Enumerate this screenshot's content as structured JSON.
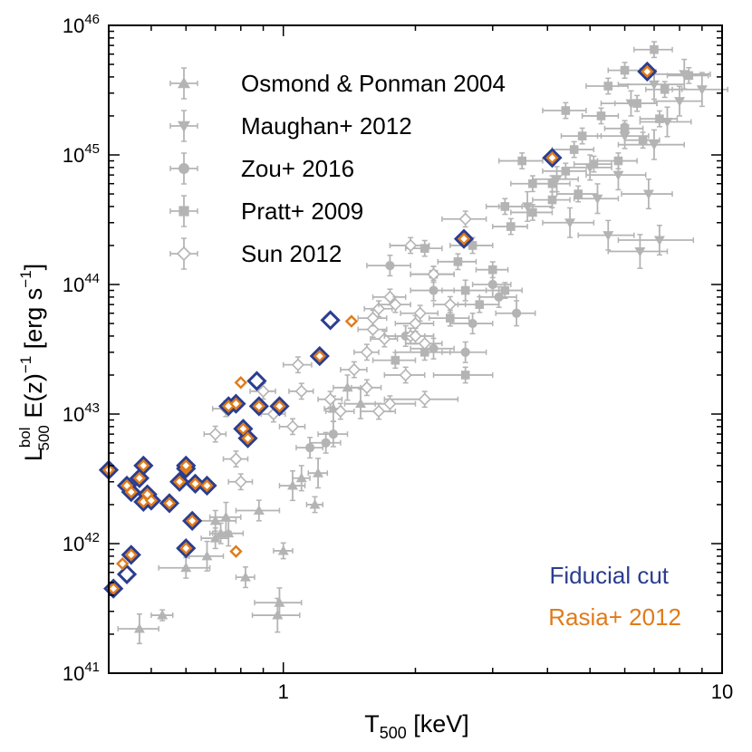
{
  "chart_data": {
    "type": "scatter",
    "xscale": "log",
    "yscale": "log",
    "xlim": [
      0.4,
      10
    ],
    "ylim": [
      1e+41,
      1e+46
    ],
    "xlabel": {
      "main": "T",
      "sub": "500",
      "rest": " [keV]"
    },
    "ylabel": {
      "main": "L",
      "sup": "bol",
      "sub": "500",
      "mid": " E(z)",
      "sup2": "−1",
      "unit": " [erg s",
      "sup3": "−1",
      "close": "]"
    },
    "x_ticks": [
      {
        "value": 1,
        "label": "1"
      },
      {
        "value": 10,
        "label": "10"
      }
    ],
    "y_ticks": [
      {
        "value": 1e+41,
        "base": "10",
        "exp": "41"
      },
      {
        "value": 1e+42,
        "base": "10",
        "exp": "42"
      },
      {
        "value": 1e+43,
        "base": "10",
        "exp": "43"
      },
      {
        "value": 1e+44,
        "base": "10",
        "exp": "44"
      },
      {
        "value": 1e+45,
        "base": "10",
        "exp": "45"
      },
      {
        "value": 1e+46,
        "base": "10",
        "exp": "46"
      }
    ],
    "legend_position": "top-left",
    "colors": {
      "gray": "#b4b4b4",
      "fiducial": "#2a3d8f",
      "rasia": "#e07b1a",
      "axis": "#000000"
    },
    "series": [
      {
        "name": "Osmond & Ponman 2004",
        "marker": "triangle-up",
        "points": [
          [
            0.47,
            2.2e+41,
            0.05,
            1.3
          ],
          [
            0.53,
            2.8e+41,
            0.03,
            1.1
          ],
          [
            0.6,
            6.5e+41,
            0.08,
            1.2
          ],
          [
            0.67,
            8e+41,
            0.06,
            1.3
          ],
          [
            0.7,
            1.1e+42,
            0.05,
            1.2
          ],
          [
            0.72,
            1.2e+42,
            0.04,
            1.2
          ],
          [
            0.75,
            1.2e+42,
            0.06,
            1.25
          ],
          [
            0.7,
            1.5e+42,
            0.08,
            1.2
          ],
          [
            0.74,
            1.6e+42,
            0.06,
            1.3
          ],
          [
            0.88,
            1.8e+42,
            0.1,
            1.2
          ],
          [
            0.82,
            5.5e+41,
            0.04,
            1.2
          ],
          [
            0.98,
            3.5e+41,
            0.12,
            1.3
          ],
          [
            0.97,
            2.8e+41,
            0.12,
            1.35
          ],
          [
            1.0,
            8.8e+41,
            0.05,
            1.15
          ],
          [
            1.18,
            2e+42,
            0.05,
            1.15
          ],
          [
            1.05,
            2.8e+42,
            0.07,
            1.3
          ],
          [
            1.1,
            3.2e+42,
            0.05,
            1.25
          ],
          [
            1.2,
            3.5e+42,
            0.06,
            1.3
          ],
          [
            1.4,
            1.6e+43,
            0.1,
            1.25
          ],
          [
            1.5,
            1.2e+43,
            0.12,
            1.3
          ],
          [
            1.3,
            1.1e+43,
            0.06,
            1.25
          ]
        ]
      },
      {
        "name": "Maughan+ 2012",
        "marker": "triangle-down",
        "points": [
          [
            3.6,
            4e+44,
            0.5,
            1.3
          ],
          [
            4.5,
            3e+44,
            0.6,
            1.3
          ],
          [
            5.5,
            2.4e+44,
            0.8,
            1.3
          ],
          [
            6.5,
            1.8e+44,
            1.0,
            1.35
          ],
          [
            7.2,
            2.2e+44,
            1.4,
            1.3
          ],
          [
            4.2,
            6.5e+44,
            0.5,
            1.25
          ],
          [
            5.0,
            8e+44,
            0.6,
            1.25
          ],
          [
            5.8,
            7e+44,
            0.9,
            1.3
          ],
          [
            6.0,
            1.4e+45,
            0.8,
            1.25
          ],
          [
            7.0,
            1.2e+45,
            1.2,
            1.3
          ],
          [
            7.5,
            1.8e+45,
            1.0,
            1.3
          ],
          [
            6.2,
            2.5e+45,
            0.9,
            1.25
          ],
          [
            7.0,
            3.5e+45,
            1.2,
            1.3
          ],
          [
            8.2,
            4.2e+45,
            1.2,
            1.3
          ],
          [
            9.0,
            3.2e+45,
            1.3,
            1.35
          ],
          [
            5.2,
            4.6e+44,
            0.6,
            1.3
          ],
          [
            6.8,
            5e+44,
            0.9,
            1.3
          ],
          [
            8.0,
            2.6e+45,
            1.0,
            1.3
          ]
        ]
      },
      {
        "name": "Zou+ 2016",
        "marker": "circle",
        "points": [
          [
            1.25,
            6e+42,
            0.1,
            1.2
          ],
          [
            1.15,
            5.5e+42,
            0.08,
            1.2
          ],
          [
            1.3,
            7e+42,
            0.1,
            1.25
          ],
          [
            1.75,
            1.4e+44,
            0.2,
            1.2
          ],
          [
            2.2,
            9e+43,
            0.25,
            1.2
          ],
          [
            3.0,
            1e+44,
            0.3,
            1.25
          ],
          [
            3.4,
            6e+43,
            0.35,
            1.25
          ],
          [
            2.7,
            5e+43,
            0.3,
            1.2
          ],
          [
            2.6,
            3e+43,
            0.3,
            1.2
          ],
          [
            2.2,
            3.2e+43,
            0.25,
            1.2
          ],
          [
            3.1,
            8e+43,
            0.3,
            1.2
          ],
          [
            1.9,
            4e+43,
            0.2,
            1.2
          ]
        ]
      },
      {
        "name": "Pratt+ 2009",
        "marker": "square",
        "points": [
          [
            2.1,
            1.9e+44,
            0.2,
            1.15
          ],
          [
            2.5,
            1.5e+44,
            0.25,
            1.15
          ],
          [
            3.0,
            1.3e+44,
            0.25,
            1.15
          ],
          [
            2.6,
            9e+43,
            0.3,
            1.2
          ],
          [
            2.8,
            7e+43,
            0.3,
            1.15
          ],
          [
            3.2,
            9e+43,
            0.3,
            1.15
          ],
          [
            2.6,
            2e+43,
            0.4,
            1.15
          ],
          [
            2.1,
            3e+43,
            0.3,
            1.15
          ],
          [
            1.8,
            2.6e+43,
            0.2,
            1.15
          ],
          [
            3.7,
            3.6e+44,
            0.4,
            1.15
          ],
          [
            4.1,
            4.5e+44,
            0.4,
            1.15
          ],
          [
            4.7,
            5e+44,
            0.5,
            1.15
          ],
          [
            4.1,
            6e+44,
            0.4,
            1.15
          ],
          [
            4.4,
            7.5e+44,
            0.5,
            1.15
          ],
          [
            5.1,
            8.5e+44,
            0.5,
            1.15
          ],
          [
            3.7,
            6e+44,
            0.4,
            1.15
          ],
          [
            4.8,
            1.4e+45,
            0.5,
            1.15
          ],
          [
            6.0,
            1.6e+45,
            0.6,
            1.15
          ],
          [
            5.3,
            2e+45,
            0.5,
            1.15
          ],
          [
            6.4,
            2.5e+45,
            0.7,
            1.15
          ],
          [
            5.5,
            3.4e+45,
            0.6,
            1.15
          ],
          [
            7.0,
            6.5e+45,
            0.7,
            1.15
          ],
          [
            6.0,
            4.5e+45,
            0.5,
            1.15
          ],
          [
            4.6,
            1.1e+45,
            0.5,
            1.15
          ],
          [
            3.5,
            9e+44,
            0.4,
            1.15
          ],
          [
            3.2,
            4e+44,
            0.3,
            1.15
          ],
          [
            5.8,
            9e+44,
            0.6,
            1.15
          ],
          [
            7.4,
            3.2e+45,
            0.7,
            1.15
          ],
          [
            6.6,
            1.3e+45,
            0.6,
            1.15
          ],
          [
            8.4,
            4.1e+45,
            0.9,
            1.15
          ],
          [
            2.7,
            2e+44,
            0.3,
            1.15
          ],
          [
            3.3,
            2.8e+44,
            0.3,
            1.15
          ],
          [
            2.2,
            1.2e+44,
            0.25,
            1.15
          ],
          [
            2.4,
            5.5e+43,
            0.25,
            1.15
          ],
          [
            4.4,
            2.2e+45,
            0.5,
            1.15
          ],
          [
            7.2,
            1.9e+45,
            0.7,
            1.15
          ]
        ]
      },
      {
        "name": "Sun 2012",
        "marker": "diamond-open",
        "points": [
          [
            0.7,
            7e+42,
            0.04,
            1.15
          ],
          [
            0.78,
            4.5e+42,
            0.05,
            1.15
          ],
          [
            0.8,
            3e+42,
            0.05,
            1.15
          ],
          [
            0.74,
            1.1e+43,
            0.05,
            1.15
          ],
          [
            0.9,
            1.5e+43,
            0.06,
            1.15
          ],
          [
            0.95,
            1e+43,
            0.06,
            1.15
          ],
          [
            1.05,
            8e+42,
            0.07,
            1.15
          ],
          [
            1.08,
            2.4e+43,
            0.08,
            1.15
          ],
          [
            1.1,
            1.5e+43,
            0.07,
            1.15
          ],
          [
            1.28,
            1.3e+43,
            0.08,
            1.15
          ],
          [
            1.35,
            1.05e+43,
            0.1,
            1.15
          ],
          [
            1.45,
            2.2e+43,
            0.1,
            1.15
          ],
          [
            1.55,
            1.6e+43,
            0.12,
            1.15
          ],
          [
            1.65,
            1.05e+43,
            0.15,
            1.15
          ],
          [
            1.55,
            3e+43,
            0.1,
            1.15
          ],
          [
            1.7,
            3.8e+43,
            0.12,
            1.15
          ],
          [
            1.6,
            4.5e+43,
            0.12,
            1.15
          ],
          [
            1.65,
            6.5e+43,
            0.12,
            1.15
          ],
          [
            1.75,
            8e+43,
            0.15,
            1.15
          ],
          [
            1.6,
            5.5e+43,
            0.12,
            1.15
          ],
          [
            2.0,
            5e+43,
            0.2,
            1.15
          ],
          [
            2.1,
            3.5e+43,
            0.2,
            1.15
          ],
          [
            1.9,
            2e+43,
            0.2,
            1.15
          ],
          [
            2.1,
            1.3e+43,
            0.4,
            1.15
          ],
          [
            1.75,
            1.2e+43,
            0.25,
            1.15
          ],
          [
            2.05,
            6e+43,
            0.2,
            1.15
          ],
          [
            2.2,
            1.2e+44,
            0.25,
            1.15
          ],
          [
            1.95,
            2e+44,
            0.2,
            1.15
          ],
          [
            2.6,
            3.2e+44,
            0.3,
            1.15
          ],
          [
            1.95,
            4e+43,
            0.25,
            1.15
          ],
          [
            1.8,
            7e+43,
            0.15,
            1.15
          ],
          [
            2.4,
            7e+43,
            0.2,
            1.15
          ],
          [
            2.0,
            4e+43,
            0.2,
            1.15
          ]
        ]
      }
    ],
    "highlights": [
      {
        "name": "Fiducial cut",
        "marker": "diamond-open-bold",
        "points": [
          [
            0.4,
            3.7e+42
          ],
          [
            0.48,
            4e+42
          ],
          [
            0.47,
            3.2e+42
          ],
          [
            0.44,
            2.8e+42
          ],
          [
            0.45,
            2.5e+42
          ],
          [
            0.49,
            2.4e+42
          ],
          [
            0.48,
            2.1e+42
          ],
          [
            0.5,
            2.15e+42
          ],
          [
            0.55,
            2.05e+42
          ],
          [
            0.58,
            3e+42
          ],
          [
            0.6,
            3.8e+42
          ],
          [
            0.6,
            4e+42
          ],
          [
            0.63,
            2.9e+42
          ],
          [
            0.67,
            2.8e+42
          ],
          [
            0.62,
            1.5e+42
          ],
          [
            0.6,
            9.2e+41
          ],
          [
            0.45,
            8.2e+41
          ],
          [
            0.44,
            5.8e+41
          ],
          [
            0.41,
            4.5e+41
          ],
          [
            0.75,
            1.15e+43
          ],
          [
            0.78,
            1.2e+43
          ],
          [
            0.81,
            7.7e+42
          ],
          [
            0.83,
            6.5e+42
          ],
          [
            0.87,
            1.8e+43
          ],
          [
            0.88,
            1.15e+43
          ],
          [
            0.98,
            1.15e+43
          ],
          [
            1.21,
            2.8e+43
          ],
          [
            1.28,
            5.3e+43
          ],
          [
            2.58,
            2.25e+44
          ],
          [
            4.1,
            9.5e+44
          ],
          [
            6.75,
            4.4e+45
          ]
        ]
      },
      {
        "name": "Rasia+ 2012",
        "marker": "diamond-open-small",
        "points": [
          [
            0.4,
            3.7e+42
          ],
          [
            0.48,
            4e+42
          ],
          [
            0.47,
            3.2e+42
          ],
          [
            0.44,
            2.8e+42
          ],
          [
            0.45,
            2.5e+42
          ],
          [
            0.49,
            2.4e+42
          ],
          [
            0.48,
            2.1e+42
          ],
          [
            0.5,
            2.15e+42
          ],
          [
            0.55,
            2.05e+42
          ],
          [
            0.58,
            3e+42
          ],
          [
            0.6,
            3.8e+42
          ],
          [
            0.6,
            4e+42
          ],
          [
            0.63,
            2.9e+42
          ],
          [
            0.67,
            2.8e+42
          ],
          [
            0.62,
            1.5e+42
          ],
          [
            0.6,
            9.2e+41
          ],
          [
            0.45,
            8.2e+41
          ],
          [
            0.43,
            7e+41
          ],
          [
            0.41,
            4.5e+41
          ],
          [
            0.75,
            1.15e+43
          ],
          [
            0.78,
            1.2e+43
          ],
          [
            0.8,
            1.75e+43
          ],
          [
            0.81,
            7.7e+42
          ],
          [
            0.83,
            6.5e+42
          ],
          [
            0.88,
            1.15e+43
          ],
          [
            0.98,
            1.15e+43
          ],
          [
            0.78,
            8.7e+41
          ],
          [
            1.21,
            2.8e+43
          ],
          [
            1.43,
            5.2e+43
          ],
          [
            2.58,
            2.25e+44
          ],
          [
            4.1,
            9.5e+44
          ],
          [
            6.75,
            4.4e+45
          ]
        ]
      }
    ],
    "legend": [
      {
        "label": "Osmond & Ponman 2004",
        "marker": "triangle-up"
      },
      {
        "label": "Maughan+ 2012",
        "marker": "triangle-down"
      },
      {
        "label": "Zou+ 2016",
        "marker": "circle"
      },
      {
        "label": "Pratt+ 2009",
        "marker": "square"
      },
      {
        "label": "Sun 2012",
        "marker": "diamond-open"
      }
    ],
    "annotations": [
      {
        "text": "Fiducial cut",
        "color": "fiducial"
      },
      {
        "text": "Rasia+ 2012",
        "color": "rasia"
      }
    ]
  }
}
